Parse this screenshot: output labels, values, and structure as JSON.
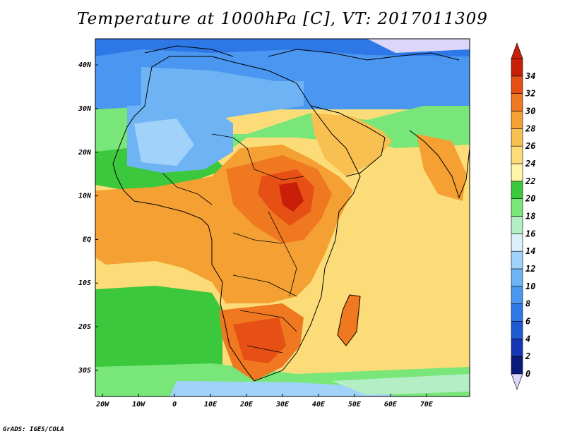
{
  "title": "Temperature at 1000hPa [C], VT: 2017011309",
  "credit": "GrADS: IGES/COLA",
  "map": {
    "variable": "Temperature at 1000hPa",
    "units": "C",
    "valid_time": "2017011309",
    "lon_range": [
      -22,
      82
    ],
    "lat_range": [
      -36,
      46
    ],
    "lon_ticks": [
      {
        "value": -20,
        "label": "20W"
      },
      {
        "value": -10,
        "label": "10W"
      },
      {
        "value": 0,
        "label": "0"
      },
      {
        "value": 10,
        "label": "10E"
      },
      {
        "value": 20,
        "label": "20E"
      },
      {
        "value": 30,
        "label": "30E"
      },
      {
        "value": 40,
        "label": "40E"
      },
      {
        "value": 50,
        "label": "50E"
      },
      {
        "value": 60,
        "label": "60E"
      },
      {
        "value": 70,
        "label": "70E"
      }
    ],
    "lat_ticks": [
      {
        "value": 40,
        "label": "40N"
      },
      {
        "value": 30,
        "label": "30N"
      },
      {
        "value": 20,
        "label": "20N"
      },
      {
        "value": 10,
        "label": "10N"
      },
      {
        "value": 0,
        "label": "EQ"
      },
      {
        "value": -10,
        "label": "10S"
      },
      {
        "value": -20,
        "label": "20S"
      },
      {
        "value": -30,
        "label": "30S"
      }
    ]
  },
  "colorbar": {
    "levels": [
      "0",
      "2",
      "4",
      "6",
      "8",
      "10",
      "12",
      "14",
      "16",
      "18",
      "20",
      "22",
      "24",
      "26",
      "28",
      "30",
      "32",
      "34"
    ],
    "colors": [
      "#0a1a7a",
      "#1436b4",
      "#1e5ad2",
      "#2d78e6",
      "#4a96f0",
      "#6eb4f5",
      "#a0d2fa",
      "#dcf0fa",
      "#b4eec4",
      "#78e678",
      "#3cc83c",
      "#fff5aa",
      "#fcdc78",
      "#f8c050",
      "#f4a032",
      "#f07820",
      "#e65014",
      "#c81e0a"
    ],
    "over_color": "#c81e0a",
    "under_color": "#dcd6fa"
  }
}
